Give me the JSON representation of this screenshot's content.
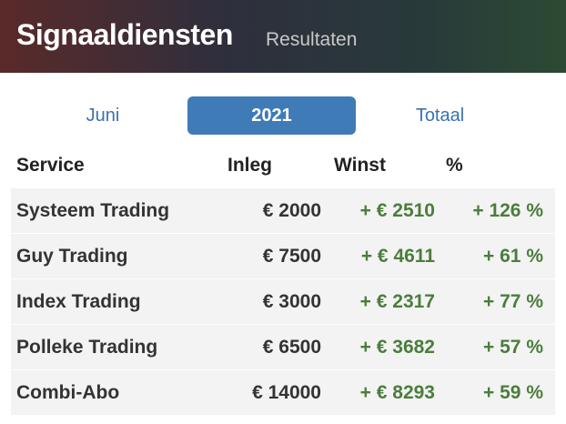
{
  "header": {
    "title": "Signaaldiensten",
    "subtitle": "Resultaten"
  },
  "tabs": [
    "Juni",
    "2021",
    "Totaal"
  ],
  "active_tab": 1,
  "table": {
    "columns": [
      "Service",
      "Inleg",
      "Winst",
      "%"
    ],
    "rows": [
      [
        "Systeem Trading",
        "€ 2000",
        "+ € 2510",
        "+ 126 %"
      ],
      [
        "Guy Trading",
        "€ 7500",
        "+ € 4611",
        "+ 61 %"
      ],
      [
        "Index Trading",
        "€ 3000",
        "+ € 2317",
        "+ 77 %"
      ],
      [
        "Polleke Trading",
        "€ 6500",
        "+ € 3682",
        "+ 57 %"
      ],
      [
        "Combi-Abo",
        "€ 14000",
        "+ € 8293",
        "+ 59 %"
      ]
    ]
  }
}
